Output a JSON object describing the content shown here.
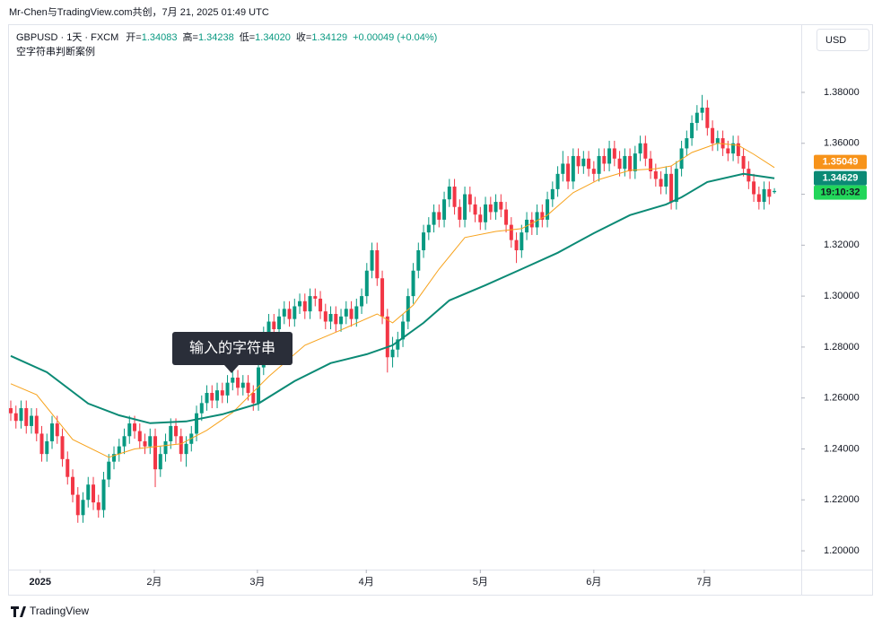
{
  "header": {
    "watermark": "Mr-Chen与TradingView.com共创，7月 21, 2025 01:49 UTC",
    "symbol": "GBPUSD · 1天 · FXCM",
    "ohlc_text": [
      {
        "key": "开=",
        "value": "1.34083"
      },
      {
        "key": "高=",
        "value": "1.34238"
      },
      {
        "key": "低=",
        "value": "1.34020"
      },
      {
        "key": "收=",
        "value": "1.34129"
      }
    ],
    "change": "+0.00049 (+0.04%)",
    "indicator": "空字符串判断案例",
    "currency": "USD",
    "brand": "TradingView"
  },
  "tooltip": "输入的字符串",
  "chart_data": {
    "type": "candlestick",
    "up_color": "#089981",
    "down_color": "#f23645",
    "xlim": [
      -0.35,
      153.2
    ],
    "ylim": [
      1.19262,
      1.4057
    ],
    "xticks": [
      {
        "value": 5.7,
        "label": "2025"
      },
      {
        "value": 27.8,
        "label": "2月"
      },
      {
        "value": 47.8,
        "label": "3月"
      },
      {
        "value": 68.9,
        "label": "4月"
      },
      {
        "value": 91,
        "label": "5月"
      },
      {
        "value": 113,
        "label": "6月"
      },
      {
        "value": 134.4,
        "label": "7月"
      }
    ],
    "yticks": [
      {
        "value": 1.2,
        "label": "1.20000"
      },
      {
        "value": 1.22,
        "label": "1.22000"
      },
      {
        "value": 1.24,
        "label": "1.24000"
      },
      {
        "value": 1.26,
        "label": "1.26000"
      },
      {
        "value": 1.28,
        "label": "1.28000"
      },
      {
        "value": 1.3,
        "label": "1.30000"
      },
      {
        "value": 1.32,
        "label": "1.32000"
      },
      {
        "value": 1.34,
        "label": "1.34000"
      },
      {
        "value": 1.36,
        "label": "1.36000"
      },
      {
        "value": 1.38,
        "label": "1.38000"
      }
    ],
    "ohlc": [
      [
        1.256,
        1.259,
        1.251,
        1.254
      ],
      [
        1.254,
        1.257,
        1.248,
        1.251
      ],
      [
        1.251,
        1.259,
        1.248,
        1.256
      ],
      [
        1.256,
        1.259,
        1.246,
        1.249
      ],
      [
        1.249,
        1.256,
        1.246,
        1.253
      ],
      [
        1.253,
        1.256,
        1.243,
        1.246
      ],
      [
        1.246,
        1.249,
        1.235,
        1.238
      ],
      [
        1.238,
        1.246,
        1.235,
        1.243
      ],
      [
        1.243,
        1.253,
        1.24,
        1.25
      ],
      [
        1.25,
        1.253,
        1.242,
        1.245
      ],
      [
        1.245,
        1.248,
        1.233,
        1.236
      ],
      [
        1.236,
        1.239,
        1.226,
        1.229
      ],
      [
        1.229,
        1.232,
        1.219,
        1.222
      ],
      [
        1.222,
        1.225,
        1.211,
        1.214
      ],
      [
        1.214,
        1.223,
        1.211,
        1.22
      ],
      [
        1.22,
        1.229,
        1.217,
        1.226
      ],
      [
        1.226,
        1.229,
        1.216,
        1.219
      ],
      [
        1.219,
        1.222,
        1.213,
        1.216
      ],
      [
        1.216,
        1.231,
        1.213,
        1.228
      ],
      [
        1.228,
        1.238,
        1.225,
        1.235
      ],
      [
        1.235,
        1.241,
        1.232,
        1.238
      ],
      [
        1.238,
        1.244,
        1.235,
        1.241
      ],
      [
        1.241,
        1.248,
        1.238,
        1.245
      ],
      [
        1.245,
        1.253,
        1.242,
        1.25
      ],
      [
        1.25,
        1.253,
        1.244,
        1.247
      ],
      [
        1.247,
        1.25,
        1.24,
        1.243
      ],
      [
        1.243,
        1.246,
        1.238,
        1.241
      ],
      [
        1.241,
        1.248,
        1.238,
        1.245
      ],
      [
        1.245,
        1.248,
        1.225,
        1.232
      ],
      [
        1.232,
        1.241,
        1.229,
        1.238
      ],
      [
        1.238,
        1.246,
        1.235,
        1.243
      ],
      [
        1.243,
        1.252,
        1.24,
        1.249
      ],
      [
        1.249,
        1.252,
        1.242,
        1.245
      ],
      [
        1.245,
        1.248,
        1.235,
        1.238
      ],
      [
        1.238,
        1.245,
        1.233,
        1.242
      ],
      [
        1.242,
        1.249,
        1.239,
        1.246
      ],
      [
        1.246,
        1.257,
        1.243,
        1.254
      ],
      [
        1.254,
        1.261,
        1.251,
        1.258
      ],
      [
        1.258,
        1.265,
        1.255,
        1.262
      ],
      [
        1.262,
        1.265,
        1.256,
        1.259
      ],
      [
        1.259,
        1.266,
        1.256,
        1.263
      ],
      [
        1.263,
        1.266,
        1.258,
        1.261
      ],
      [
        1.261,
        1.269,
        1.258,
        1.266
      ],
      [
        1.266,
        1.271,
        1.263,
        1.268
      ],
      [
        1.268,
        1.271,
        1.261,
        1.264
      ],
      [
        1.264,
        1.269,
        1.261,
        1.266
      ],
      [
        1.266,
        1.269,
        1.259,
        1.262
      ],
      [
        1.262,
        1.265,
        1.255,
        1.258
      ],
      [
        1.258,
        1.275,
        1.255,
        1.272
      ],
      [
        1.272,
        1.288,
        1.269,
        1.285
      ],
      [
        1.285,
        1.293,
        1.282,
        1.29
      ],
      [
        1.29,
        1.293,
        1.284,
        1.287
      ],
      [
        1.287,
        1.295,
        1.284,
        1.292
      ],
      [
        1.292,
        1.298,
        1.289,
        1.295
      ],
      [
        1.295,
        1.298,
        1.288,
        1.291
      ],
      [
        1.291,
        1.299,
        1.288,
        1.296
      ],
      [
        1.296,
        1.301,
        1.293,
        1.298
      ],
      [
        1.298,
        1.301,
        1.291,
        1.294
      ],
      [
        1.294,
        1.303,
        1.291,
        1.3
      ],
      [
        1.3,
        1.303,
        1.296,
        1.299
      ],
      [
        1.299,
        1.302,
        1.291,
        1.294
      ],
      [
        1.294,
        1.297,
        1.287,
        1.29
      ],
      [
        1.29,
        1.296,
        1.287,
        1.293
      ],
      [
        1.293,
        1.296,
        1.286,
        1.289
      ],
      [
        1.289,
        1.295,
        1.286,
        1.292
      ],
      [
        1.292,
        1.298,
        1.289,
        1.295
      ],
      [
        1.295,
        1.298,
        1.288,
        1.291
      ],
      [
        1.291,
        1.299,
        1.288,
        1.296
      ],
      [
        1.296,
        1.303,
        1.293,
        1.3
      ],
      [
        1.3,
        1.313,
        1.297,
        1.31
      ],
      [
        1.31,
        1.321,
        1.307,
        1.318
      ],
      [
        1.318,
        1.321,
        1.304,
        1.307
      ],
      [
        1.307,
        1.31,
        1.289,
        1.292
      ],
      [
        1.292,
        1.295,
        1.27,
        1.276
      ],
      [
        1.276,
        1.284,
        1.272,
        1.279
      ],
      [
        1.279,
        1.286,
        1.276,
        1.283
      ],
      [
        1.283,
        1.293,
        1.28,
        1.29
      ],
      [
        1.29,
        1.303,
        1.287,
        1.3
      ],
      [
        1.3,
        1.313,
        1.297,
        1.31
      ],
      [
        1.31,
        1.321,
        1.307,
        1.318
      ],
      [
        1.318,
        1.328,
        1.315,
        1.325
      ],
      [
        1.325,
        1.331,
        1.322,
        1.328
      ],
      [
        1.328,
        1.336,
        1.325,
        1.333
      ],
      [
        1.333,
        1.336,
        1.327,
        1.33
      ],
      [
        1.33,
        1.341,
        1.327,
        1.338
      ],
      [
        1.338,
        1.346,
        1.335,
        1.343
      ],
      [
        1.343,
        1.346,
        1.332,
        1.335
      ],
      [
        1.335,
        1.338,
        1.327,
        1.33
      ],
      [
        1.33,
        1.343,
        1.327,
        1.34
      ],
      [
        1.34,
        1.343,
        1.333,
        1.336
      ],
      [
        1.336,
        1.339,
        1.329,
        1.332
      ],
      [
        1.332,
        1.335,
        1.326,
        1.329
      ],
      [
        1.329,
        1.339,
        1.326,
        1.336
      ],
      [
        1.336,
        1.339,
        1.33,
        1.333
      ],
      [
        1.333,
        1.34,
        1.33,
        1.337
      ],
      [
        1.337,
        1.34,
        1.331,
        1.334
      ],
      [
        1.334,
        1.337,
        1.325,
        1.328
      ],
      [
        1.328,
        1.331,
        1.319,
        1.322
      ],
      [
        1.322,
        1.325,
        1.313,
        1.318
      ],
      [
        1.318,
        1.328,
        1.315,
        1.325
      ],
      [
        1.325,
        1.333,
        1.322,
        1.33
      ],
      [
        1.33,
        1.333,
        1.324,
        1.327
      ],
      [
        1.327,
        1.336,
        1.324,
        1.333
      ],
      [
        1.333,
        1.336,
        1.327,
        1.33
      ],
      [
        1.33,
        1.341,
        1.327,
        1.338
      ],
      [
        1.338,
        1.345,
        1.335,
        1.342
      ],
      [
        1.342,
        1.351,
        1.339,
        1.348
      ],
      [
        1.348,
        1.357,
        1.345,
        1.352
      ],
      [
        1.352,
        1.355,
        1.342,
        1.345
      ],
      [
        1.345,
        1.358,
        1.342,
        1.355
      ],
      [
        1.355,
        1.358,
        1.348,
        1.351
      ],
      [
        1.351,
        1.357,
        1.348,
        1.354
      ],
      [
        1.354,
        1.357,
        1.347,
        1.35
      ],
      [
        1.35,
        1.353,
        1.345,
        1.348
      ],
      [
        1.348,
        1.358,
        1.345,
        1.355
      ],
      [
        1.355,
        1.358,
        1.349,
        1.352
      ],
      [
        1.352,
        1.361,
        1.349,
        1.358
      ],
      [
        1.358,
        1.361,
        1.351,
        1.354
      ],
      [
        1.354,
        1.357,
        1.347,
        1.35
      ],
      [
        1.35,
        1.358,
        1.347,
        1.355
      ],
      [
        1.355,
        1.358,
        1.346,
        1.349
      ],
      [
        1.349,
        1.359,
        1.346,
        1.356
      ],
      [
        1.356,
        1.363,
        1.353,
        1.36
      ],
      [
        1.36,
        1.363,
        1.351,
        1.354
      ],
      [
        1.354,
        1.357,
        1.346,
        1.349
      ],
      [
        1.349,
        1.352,
        1.343,
        1.346
      ],
      [
        1.346,
        1.349,
        1.34,
        1.343
      ],
      [
        1.343,
        1.351,
        1.34,
        1.348
      ],
      [
        1.348,
        1.351,
        1.334,
        1.337
      ],
      [
        1.337,
        1.353,
        1.334,
        1.35
      ],
      [
        1.35,
        1.361,
        1.347,
        1.358
      ],
      [
        1.358,
        1.365,
        1.355,
        1.362
      ],
      [
        1.362,
        1.371,
        1.359,
        1.368
      ],
      [
        1.368,
        1.375,
        1.365,
        1.372
      ],
      [
        1.372,
        1.379,
        1.369,
        1.374
      ],
      [
        1.374,
        1.377,
        1.363,
        1.366
      ],
      [
        1.366,
        1.369,
        1.357,
        1.36
      ],
      [
        1.36,
        1.365,
        1.357,
        1.362
      ],
      [
        1.362,
        1.365,
        1.355,
        1.358
      ],
      [
        1.358,
        1.361,
        1.353,
        1.356
      ],
      [
        1.356,
        1.363,
        1.353,
        1.36
      ],
      [
        1.36,
        1.363,
        1.352,
        1.355
      ],
      [
        1.355,
        1.358,
        1.347,
        1.35
      ],
      [
        1.35,
        1.353,
        1.342,
        1.345
      ],
      [
        1.345,
        1.348,
        1.337,
        1.34
      ],
      [
        1.34,
        1.343,
        1.334,
        1.337
      ],
      [
        1.337,
        1.345,
        1.334,
        1.342
      ],
      [
        1.342,
        1.345,
        1.336,
        1.339
      ],
      [
        1.34083,
        1.34238,
        1.3402,
        1.34129
      ]
    ],
    "lines": [
      {
        "color": "#f7a21b",
        "width": 1,
        "x": [
          0,
          5,
          12,
          19,
          24,
          33,
          38,
          43,
          50,
          57,
          64,
          71,
          74,
          78,
          83,
          88,
          94,
          99,
          104,
          109,
          114,
          120,
          125,
          128,
          132,
          137,
          141,
          144,
          148
        ],
        "values": [
          1.2656,
          1.2613,
          1.2437,
          1.2367,
          1.24,
          1.242,
          1.2473,
          1.2543,
          1.2684,
          1.2807,
          1.2867,
          1.293,
          1.2895,
          1.2965,
          1.3106,
          1.323,
          1.3254,
          1.3265,
          1.3318,
          1.3406,
          1.3458,
          1.3494,
          1.35,
          1.3511,
          1.3564,
          1.36,
          1.3592,
          1.3557,
          1.35049
        ]
      },
      {
        "color": "#0b8a75",
        "width": 2,
        "x": [
          0,
          7,
          15,
          21,
          27,
          34,
          41,
          48,
          55,
          62,
          69,
          74,
          80,
          85,
          92,
          99,
          106,
          113,
          120,
          127,
          130,
          135,
          142,
          148
        ],
        "values": [
          1.2765,
          1.2701,
          1.2578,
          1.2532,
          1.2501,
          1.2508,
          1.2536,
          1.2578,
          1.2666,
          1.2737,
          1.2772,
          1.2807,
          1.2895,
          1.2983,
          1.3043,
          1.3106,
          1.317,
          1.3247,
          1.3318,
          1.336,
          1.3388,
          1.3448,
          1.348,
          1.34629
        ]
      }
    ],
    "price_labels": [
      {
        "value": 1.35049,
        "label": "1.35049",
        "color": "#f7931a"
      },
      {
        "value": 1.34629,
        "label": "1.34629",
        "color": "#0b8a75"
      },
      {
        "label": "19:10:32",
        "color": "#22d65a"
      }
    ]
  }
}
